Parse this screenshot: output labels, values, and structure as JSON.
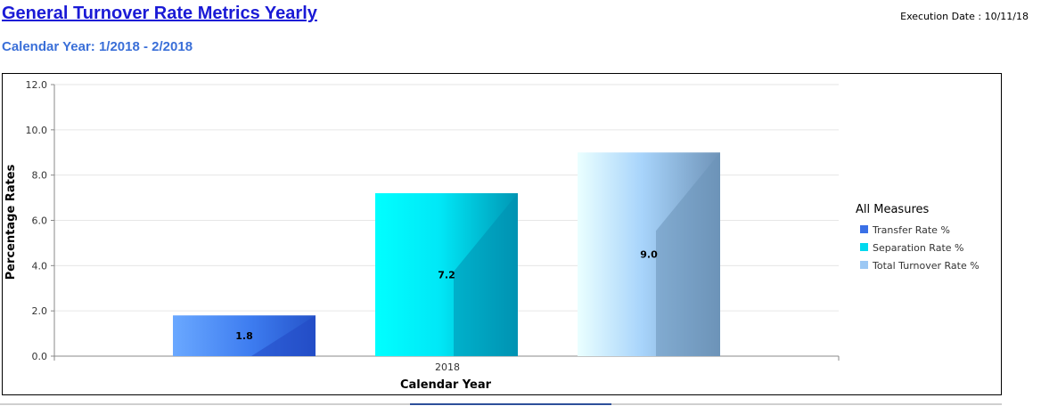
{
  "header": {
    "title": "General Turnover Rate Metrics Yearly",
    "execution_label": "Execution Date : 10/11/18",
    "subtitle": "Calendar Year:  1/2018 - 2/2018"
  },
  "colors": {
    "title": "#1a1ad6",
    "subtitle": "#3a6fd8",
    "transfer": "#2f6fe8",
    "separation": "#00e5f5",
    "total": "#9ac6f5"
  },
  "chart_data": {
    "type": "bar",
    "categories": [
      "2018"
    ],
    "series": [
      {
        "name": "Transfer Rate %",
        "values": [
          1.8
        ]
      },
      {
        "name": "Separation Rate %",
        "values": [
          7.2
        ]
      },
      {
        "name": "Total Turnover Rate %",
        "values": [
          9.0
        ]
      }
    ],
    "data_labels": [
      "1.8",
      "7.2",
      "9.0"
    ],
    "xlabel": "Calendar Year",
    "ylabel": "Percentage Rates",
    "ylim": [
      0,
      12
    ],
    "yticks": [
      "0.0",
      "2.0",
      "4.0",
      "6.0",
      "8.0",
      "10.0",
      "12.0"
    ],
    "legend_title": "All Measures",
    "legend_position": "right",
    "grid": true
  }
}
